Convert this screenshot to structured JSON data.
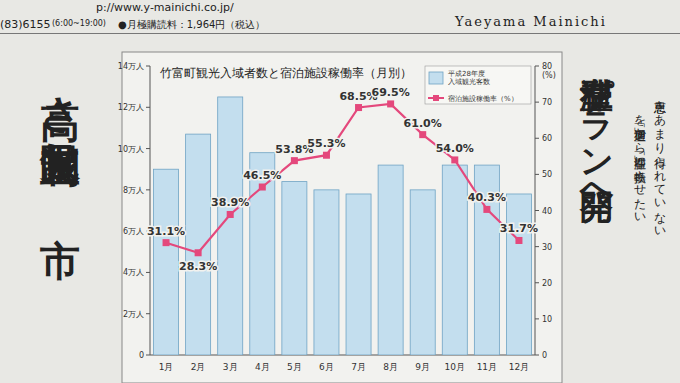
{
  "page": {
    "header": {
      "url": "p://www.y-mainichi.co.jp/",
      "phone": "(83)6155",
      "hours": "(6:00~19:00)",
      "subscription": "●月極購読料：1,964円（税込）",
      "masthead": "Yaeyama Mainichi"
    },
    "headlines": {
      "left": "高さ制限見直し 市",
      "right": "滞在型プラン開発へ"
    },
    "body_right": [
      "恩恵をあまり得られていない",
      "を「通過型」から「滞在型」に転換させたい"
    ]
  },
  "chart_data": {
    "type": "bar",
    "title": "竹富町観光入域者数と宿泊施設稼働率（月別）",
    "categories": [
      "1月",
      "2月",
      "3月",
      "4月",
      "5月",
      "6月",
      "7月",
      "8月",
      "9月",
      "10月",
      "11月",
      "12月"
    ],
    "series": [
      {
        "name": "平成28年度 入域観光客数",
        "type": "bar",
        "color": "#c3deee",
        "values": [
          90000,
          107000,
          125000,
          98000,
          84000,
          80000,
          78000,
          92000,
          80000,
          92000,
          92000,
          78000
        ]
      },
      {
        "name": "宿泊施設稼働率（%）",
        "type": "line",
        "axis": "y2",
        "color": "#e4487c",
        "marker": "square",
        "data_labels": true,
        "values": [
          31.1,
          28.3,
          38.9,
          46.5,
          53.8,
          55.3,
          68.5,
          69.5,
          61.0,
          54.0,
          40.3,
          31.7
        ],
        "value_labels": [
          "31.1%",
          "28.3%",
          "38.9%",
          "46.5%",
          "53.8%",
          "55.3%",
          "68.5%",
          "69.5%",
          "61.0%",
          "54.0%",
          "40.3%",
          "31.7%"
        ]
      }
    ],
    "ylim": [
      0,
      140000
    ],
    "yticks": [
      0,
      {
        "value": 20000,
        "label": "2万人"
      },
      {
        "value": 40000,
        "label": "4万人"
      },
      {
        "value": 60000,
        "label": "6万人"
      },
      {
        "value": 80000,
        "label": "8万人"
      },
      {
        "value": 100000,
        "label": "10万人"
      },
      {
        "value": 120000,
        "label": "12万人"
      },
      {
        "value": 140000,
        "label": "14万人"
      }
    ],
    "y2lim": [
      0,
      80
    ],
    "y2ticks": [
      0,
      10,
      20,
      30,
      40,
      50,
      60,
      70,
      80
    ],
    "y2label": "(%)",
    "grid": false,
    "legend": "top-right"
  }
}
